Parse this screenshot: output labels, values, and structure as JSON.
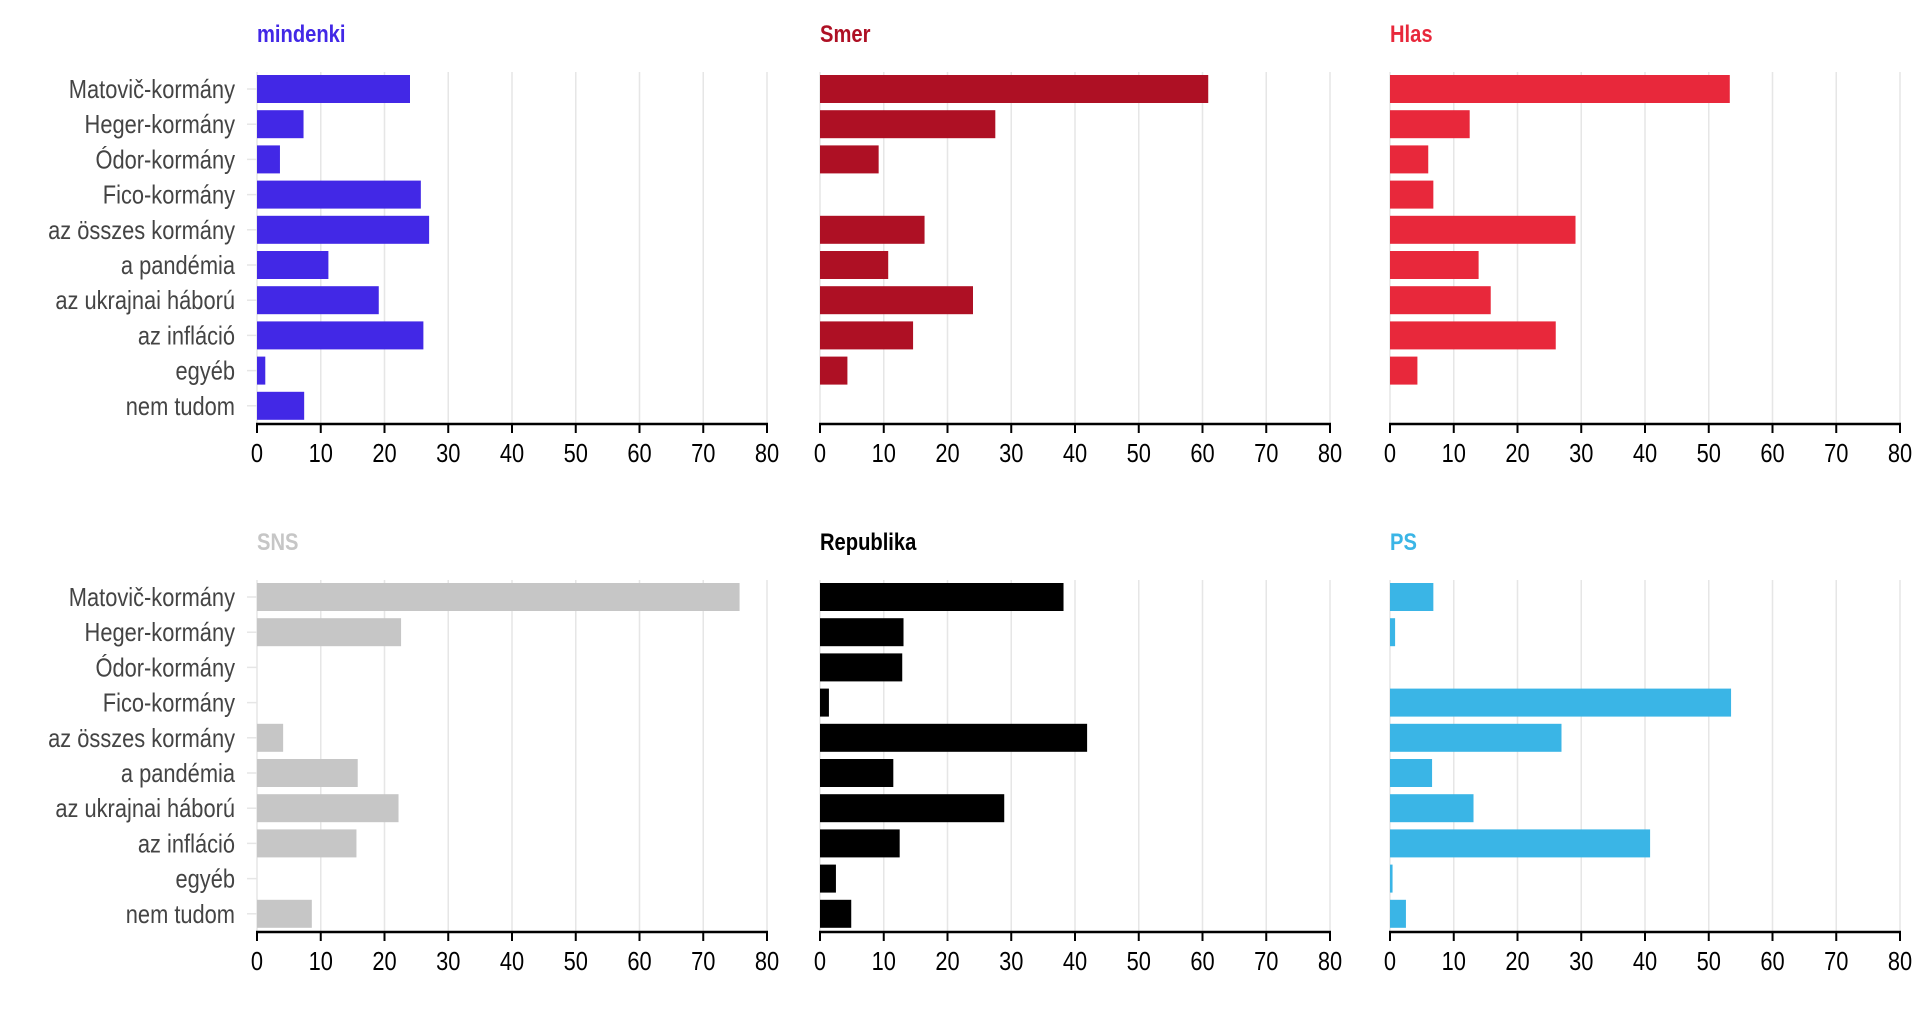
{
  "chart_data": [
    {
      "type": "bar",
      "title": "mindenki",
      "color": "#4228e6",
      "xlim": [
        0,
        80
      ],
      "ticks": [
        0,
        10,
        20,
        30,
        40,
        50,
        60,
        70,
        80
      ],
      "categories": [
        "Matovič-kormány",
        "Heger-kormány",
        "Ódor-kormány",
        "Fico-kormány",
        "az összes kormány",
        "a pandémia",
        "az ukrajnai háború",
        "az infláció",
        "egyéb",
        "nem tudom"
      ],
      "values": [
        24,
        7.3,
        3.6,
        25.7,
        27,
        11.2,
        19.1,
        26.1,
        1.3,
        7.4
      ]
    },
    {
      "type": "bar",
      "title": "Smer",
      "color": "#ae1024",
      "xlim": [
        0,
        80
      ],
      "ticks": [
        0,
        10,
        20,
        30,
        40,
        50,
        60,
        70,
        80
      ],
      "categories": [
        "Matovič-kormány",
        "Heger-kormány",
        "Ódor-kormány",
        "Fico-kormány",
        "az összes kormány",
        "a pandémia",
        "az ukrajnai háború",
        "az infláció",
        "egyéb",
        "nem tudom"
      ],
      "values": [
        60.9,
        27.5,
        9.2,
        0,
        16.4,
        10.7,
        24,
        14.6,
        4.3,
        0
      ]
    },
    {
      "type": "bar",
      "title": "Hlas",
      "color": "#e8283b",
      "xlim": [
        0,
        80
      ],
      "ticks": [
        0,
        10,
        20,
        30,
        40,
        50,
        60,
        70,
        80
      ],
      "categories": [
        "Matovič-kormány",
        "Heger-kormány",
        "Ódor-kormány",
        "Fico-kormány",
        "az összes kormány",
        "a pandémia",
        "az ukrajnai háború",
        "az infláció",
        "egyéb",
        "nem tudom"
      ],
      "values": [
        53.3,
        12.5,
        6,
        6.8,
        29.1,
        13.9,
        15.8,
        26,
        4.3,
        0
      ]
    },
    {
      "type": "bar",
      "title": "SNS",
      "color": "#c6c6c6",
      "xlim": [
        0,
        80
      ],
      "ticks": [
        0,
        10,
        20,
        30,
        40,
        50,
        60,
        70,
        80
      ],
      "categories": [
        "Matovič-kormány",
        "Heger-kormány",
        "Ódor-kormány",
        "Fico-kormány",
        "az összes kormány",
        "a pandémia",
        "az ukrajnai háború",
        "az infláció",
        "egyéb",
        "nem tudom"
      ],
      "values": [
        75.7,
        22.6,
        0,
        0,
        4.1,
        15.8,
        22.2,
        15.6,
        0,
        8.6
      ]
    },
    {
      "type": "bar",
      "title": "Republika",
      "color": "#000000",
      "xlim": [
        0,
        80
      ],
      "ticks": [
        0,
        10,
        20,
        30,
        40,
        50,
        60,
        70,
        80
      ],
      "categories": [
        "Matovič-kormány",
        "Heger-kormány",
        "Ódor-kormány",
        "Fico-kormány",
        "az összes kormány",
        "a pandémia",
        "az ukrajnai háború",
        "az infláció",
        "egyéb",
        "nem tudom"
      ],
      "values": [
        38.2,
        13.1,
        12.9,
        1.4,
        41.9,
        11.5,
        28.9,
        12.5,
        2.5,
        4.9
      ]
    },
    {
      "type": "bar",
      "title": "PS",
      "color": "#3ab5e6",
      "xlim": [
        0,
        80
      ],
      "ticks": [
        0,
        10,
        20,
        30,
        40,
        50,
        60,
        70,
        80
      ],
      "categories": [
        "Matovič-kormány",
        "Heger-kormány",
        "Ódor-kormány",
        "Fico-kormány",
        "az összes kormány",
        "a pandémia",
        "az ukrajnai háború",
        "az infláció",
        "egyéb",
        "nem tudom"
      ],
      "values": [
        6.8,
        0.8,
        0,
        53.5,
        26.9,
        6.6,
        13.1,
        40.8,
        0.4,
        2.5
      ]
    }
  ]
}
